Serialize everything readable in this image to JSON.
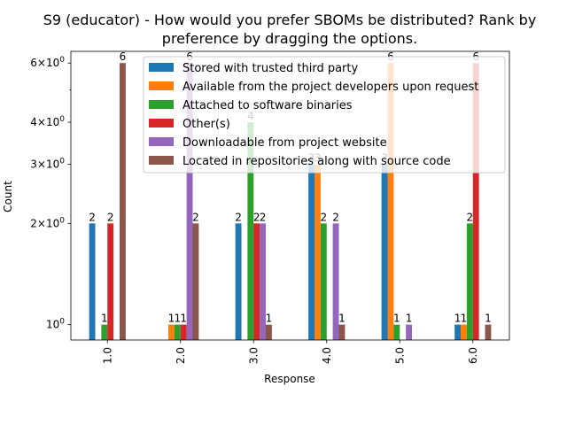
{
  "chart_data": {
    "type": "bar",
    "title": "S9 (educator) - How would you prefer SBOMs be distributed? Rank by\npreference by dragging the options.",
    "xlabel": "Response",
    "ylabel": "Count",
    "yscale": "log",
    "ylim": [
      0.9,
      6.5
    ],
    "categories": [
      "1.0",
      "2.0",
      "3.0",
      "4.0",
      "5.0",
      "6.0"
    ],
    "yticks": [
      {
        "value": 1,
        "label": "10^0",
        "base": "10",
        "exp": "0",
        "mult": ""
      },
      {
        "value": 2,
        "label": "2×10^0",
        "base": "10",
        "exp": "0",
        "mult": "2×"
      },
      {
        "value": 3,
        "label": "3×10^0",
        "base": "10",
        "exp": "0",
        "mult": "3×"
      },
      {
        "value": 4,
        "label": "4×10^0",
        "base": "10",
        "exp": "0",
        "mult": "4×"
      },
      {
        "value": 6,
        "label": "6×10^0",
        "base": "10",
        "exp": "0",
        "mult": "6×"
      }
    ],
    "series": [
      {
        "name": "Stored with trusted third party",
        "color": "#1f77b4",
        "values": [
          2,
          0,
          2,
          3,
          3,
          1
        ]
      },
      {
        "name": "Available from the project developers upon request",
        "color": "#ff7f0e",
        "values": [
          0,
          1,
          0,
          3,
          6,
          1
        ]
      },
      {
        "name": "Attached to software binaries",
        "color": "#2ca02c",
        "values": [
          1,
          1,
          4,
          2,
          1,
          2
        ]
      },
      {
        "name": "Other(s)",
        "color": "#d62728",
        "values": [
          2,
          1,
          2,
          0,
          0,
          6
        ]
      },
      {
        "name": "Downloadable from project website",
        "color": "#9467bd",
        "values": [
          0,
          6,
          2,
          2,
          1,
          0
        ]
      },
      {
        "name": "Located in repositories along with source code",
        "color": "#8c564b",
        "values": [
          6,
          2,
          1,
          1,
          0,
          1
        ]
      }
    ],
    "legend_position": "upper right",
    "grid": false
  }
}
